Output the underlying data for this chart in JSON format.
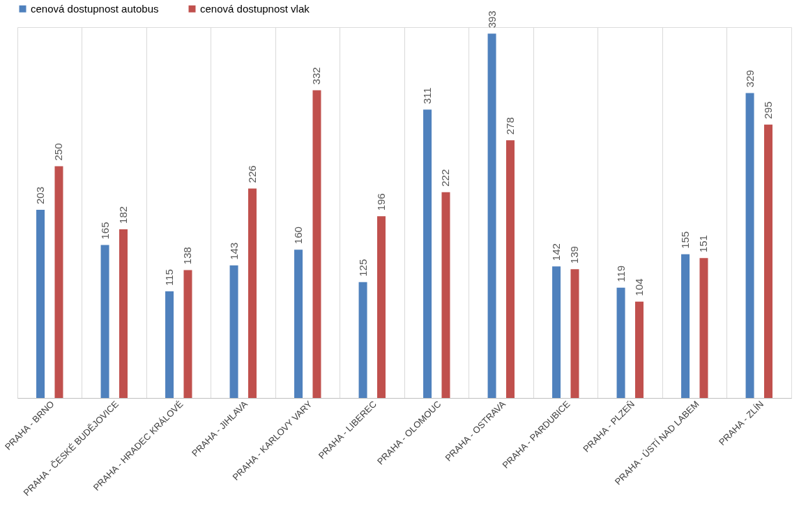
{
  "chart_data": {
    "type": "bar",
    "categories": [
      "PRAHA - BRNO",
      "PRAHA - ČESKÉ BUDĚJOVICE",
      "PRAHA - HRADEC KRÁLOVÉ",
      "PRAHA - JIHLAVA",
      "PRAHA - KARLOVY VARY",
      "PRAHA - LIBEREC",
      "PRAHA - OLOMOUC",
      "PRAHA - OSTRAVA",
      "PRAHA - PARDUBICE",
      "PRAHA - PLZEŇ",
      "PRAHA - ÚSTÍ NAD LABEM",
      "PRAHA - ZLÍN"
    ],
    "series": [
      {
        "name": "cenová dostupnost autobus",
        "color": "#4f81bd",
        "values": [
          203,
          165,
          115,
          143,
          160,
          125,
          311,
          393,
          142,
          119,
          155,
          329
        ]
      },
      {
        "name": "cenová dostupnost vlak",
        "color": "#c0504d",
        "values": [
          250,
          182,
          138,
          226,
          332,
          196,
          222,
          278,
          139,
          104,
          151,
          295
        ]
      }
    ],
    "data_labels": true,
    "legend": "top",
    "grid": "x"
  }
}
